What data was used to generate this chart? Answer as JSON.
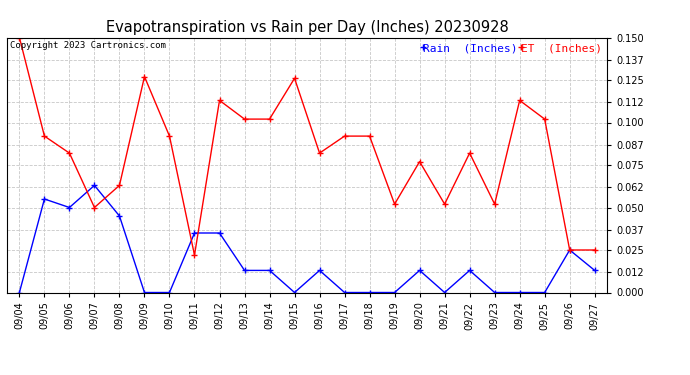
{
  "title": "Evapotranspiration vs Rain per Day (Inches) 20230928",
  "copyright": "Copyright 2023 Cartronics.com",
  "legend_rain": "Rain  (Inches)",
  "legend_et": "ET  (Inches)",
  "dates": [
    "09/04",
    "09/05",
    "09/06",
    "09/07",
    "09/08",
    "09/09",
    "09/10",
    "09/11",
    "09/12",
    "09/13",
    "09/14",
    "09/15",
    "09/16",
    "09/17",
    "09/18",
    "09/19",
    "09/20",
    "09/21",
    "09/22",
    "09/23",
    "09/24",
    "09/25",
    "09/26",
    "09/27"
  ],
  "rain": [
    0.0,
    0.055,
    0.05,
    0.063,
    0.045,
    0.0,
    0.0,
    0.035,
    0.035,
    0.013,
    0.013,
    0.0,
    0.013,
    0.0,
    0.0,
    0.0,
    0.013,
    0.0,
    0.013,
    0.0,
    0.0,
    0.0,
    0.025,
    0.013
  ],
  "et": [
    0.15,
    0.092,
    0.082,
    0.05,
    0.063,
    0.127,
    0.092,
    0.022,
    0.113,
    0.102,
    0.102,
    0.126,
    0.082,
    0.092,
    0.092,
    0.052,
    0.077,
    0.052,
    0.082,
    0.052,
    0.113,
    0.102,
    0.025,
    0.025
  ],
  "rain_color": "#0000ff",
  "et_color": "#ff0000",
  "ylim": [
    0.0,
    0.15
  ],
  "yticks": [
    0.0,
    0.012,
    0.025,
    0.037,
    0.05,
    0.062,
    0.075,
    0.087,
    0.1,
    0.112,
    0.125,
    0.137,
    0.15
  ],
  "bg_color": "#ffffff",
  "grid_color": "#c8c8c8",
  "title_fontsize": 10.5,
  "tick_fontsize": 7,
  "legend_fontsize": 8,
  "copyright_fontsize": 6.5,
  "fig_width": 6.9,
  "fig_height": 3.75,
  "dpi": 100
}
